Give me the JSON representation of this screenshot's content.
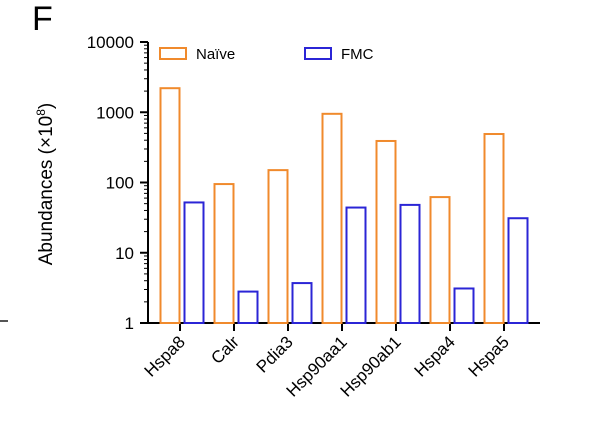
{
  "panel_label": "F",
  "colors": {
    "naive": "#F08A2C",
    "fmc": "#2B25D6",
    "axis": "#000000"
  },
  "chart_data": {
    "type": "bar",
    "title": "",
    "xlabel": "",
    "ylabel": "Abundances (×10",
    "ylabel_exponent": "8",
    "ylabel_close": ")",
    "yscale": "log",
    "ylim": [
      1,
      10000
    ],
    "yticks": [
      1,
      10,
      100,
      1000,
      10000
    ],
    "ytick_labels": [
      "1",
      "10",
      "100",
      "1000",
      "10000"
    ],
    "categories": [
      "Hspa8",
      "Calr",
      "Pdia3",
      "Hsp90aa1",
      "Hsp90ab1",
      "Hspa4",
      "Hspa5"
    ],
    "series": [
      {
        "name": "Naïve",
        "color": "#F08A2C",
        "values": [
          2200,
          95,
          150,
          950,
          390,
          62,
          490
        ]
      },
      {
        "name": "FMC",
        "color": "#2B25D6",
        "values": [
          52,
          2.8,
          3.7,
          44,
          48,
          3.1,
          31
        ]
      }
    ],
    "legend_position": "top",
    "grid": false
  }
}
